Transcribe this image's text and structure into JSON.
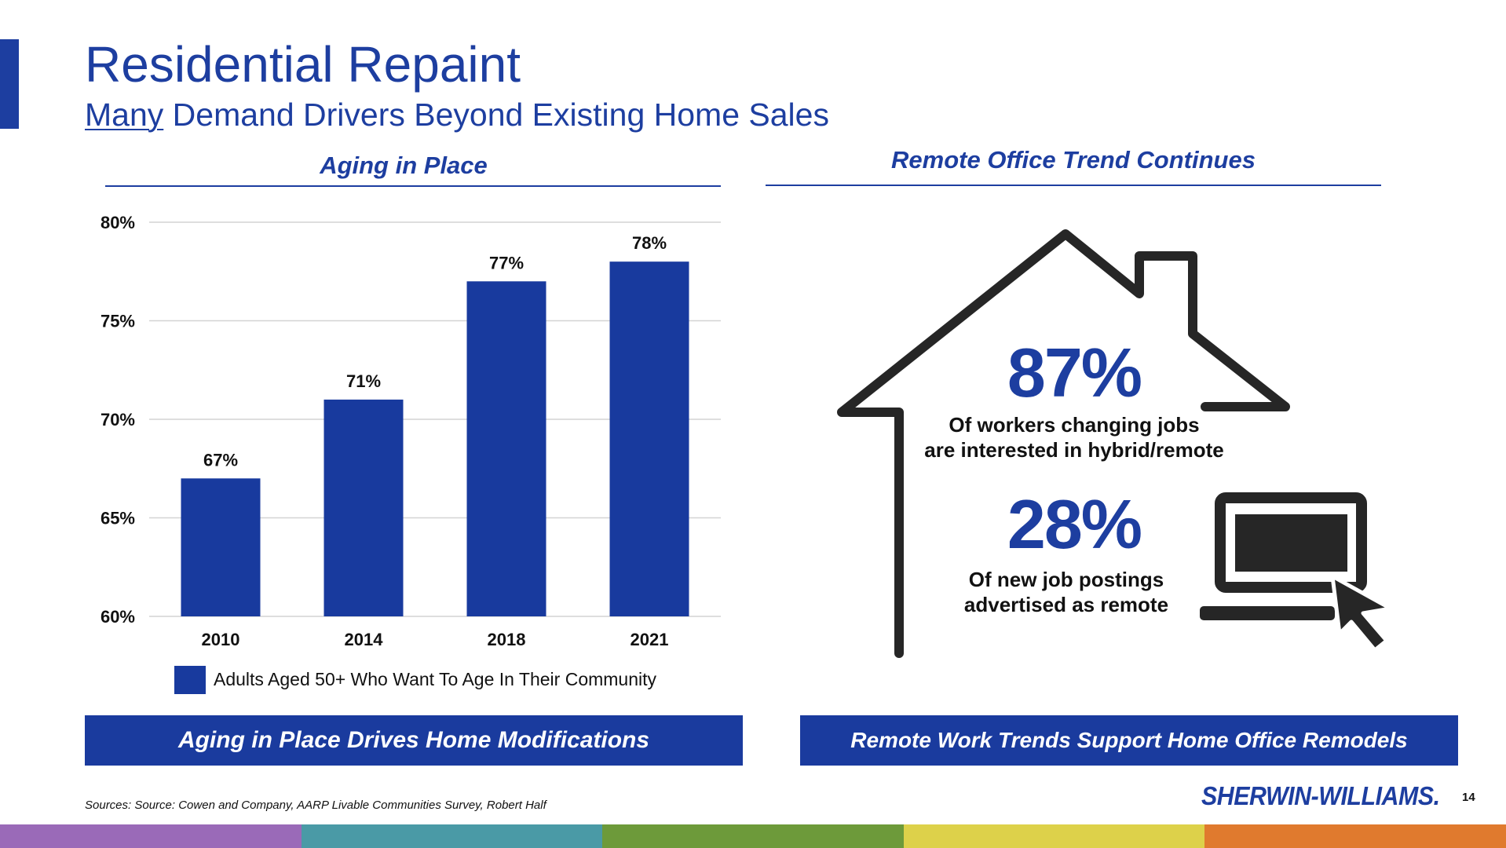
{
  "slide": {
    "title": "Residential Repaint",
    "subtitle_underlined": "Many",
    "subtitle_rest": " Demand Drivers Beyond Existing Home Sales",
    "page_number": "14",
    "sources": "Sources: Source: Cowen and Company, AARP Livable Communities Survey, Robert Half",
    "logo_text": "SHERWIN-WILLIAMS.",
    "colors": {
      "brand_blue": "#1d3ea0",
      "bar_blue": "#183a9e",
      "footer": [
        "#9a6ab8",
        "#4a9aa6",
        "#6d9a3a",
        "#ddd14a",
        "#e07a2e"
      ]
    }
  },
  "left_panel": {
    "heading": "Aging in Place",
    "banner": "Aging in Place Drives Home Modifications"
  },
  "right_panel": {
    "heading": "Remote Office Trend Continues",
    "banner": "Remote Work Trends Support Home Office Remodels",
    "stat1_value": "87%",
    "stat1_line1": "Of workers changing jobs",
    "stat1_line2": "are interested in hybrid/remote",
    "stat2_value": "28%",
    "stat2_line1": "Of new job postings",
    "stat2_line2": "advertised as remote",
    "icons": [
      "house-outline-icon",
      "laptop-icon",
      "cursor-arrow-icon"
    ]
  },
  "chart_data": {
    "type": "bar",
    "title": "Aging in Place",
    "categories": [
      "2010",
      "2014",
      "2018",
      "2021"
    ],
    "series": [
      {
        "name": "Adults Aged 50+ Who Want To Age In Their Community",
        "values": [
          67,
          71,
          77,
          78
        ]
      }
    ],
    "data_labels": [
      "67%",
      "71%",
      "77%",
      "78%"
    ],
    "ylim": [
      60,
      80
    ],
    "yticks": [
      60,
      65,
      70,
      75,
      80
    ],
    "ytick_labels": [
      "60%",
      "65%",
      "70%",
      "75%",
      "80%"
    ],
    "grid": true,
    "legend_position": "bottom"
  }
}
